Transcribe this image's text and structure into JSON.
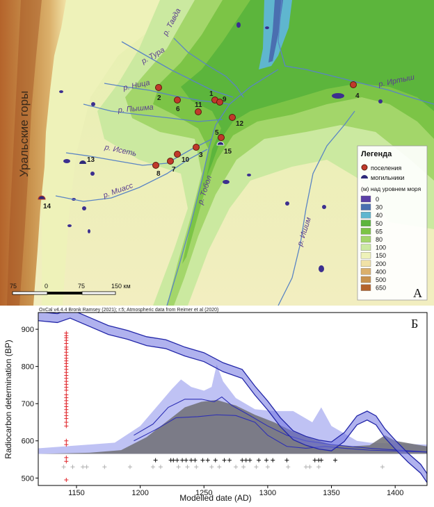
{
  "map": {
    "panel_letter": "А",
    "mountains_label": "Уральские горы",
    "rivers": [
      {
        "id": "tavda",
        "label": "р. Тавда"
      },
      {
        "id": "tura",
        "label": "р. Тура"
      },
      {
        "id": "nitsa",
        "label": "р. Ница"
      },
      {
        "id": "pyshma",
        "label": "р. Пышма"
      },
      {
        "id": "iset",
        "label": "р. Исеть"
      },
      {
        "id": "miass",
        "label": "р. Миасс"
      },
      {
        "id": "tobol",
        "label": "р. Тобол"
      },
      {
        "id": "ishim",
        "label": "р. Ишим"
      },
      {
        "id": "irtysh",
        "label": "р. Иртыш"
      }
    ],
    "settlements": [
      "1",
      "2",
      "3",
      "4",
      "5",
      "6",
      "7",
      "8",
      "9",
      "10",
      "11",
      "12"
    ],
    "burials": [
      "13",
      "14",
      "15"
    ],
    "legend": {
      "title": "Легенда",
      "settlements_label": "поселения",
      "burials_label": "могильники",
      "elevation_title": "(м) над уровнем моря",
      "elevation_levels": [
        {
          "label": "0",
          "color": "#5b3fa6"
        },
        {
          "label": "30",
          "color": "#4a6fb0"
        },
        {
          "label": "40",
          "color": "#5fb6cf"
        },
        {
          "label": "50",
          "color": "#5cb53c"
        },
        {
          "label": "65",
          "color": "#7cc446"
        },
        {
          "label": "80",
          "color": "#a3d66a"
        },
        {
          "label": "100",
          "color": "#cbe9a0"
        },
        {
          "label": "150",
          "color": "#eef2b9"
        },
        {
          "label": "200",
          "color": "#f1e2a6"
        },
        {
          "label": "400",
          "color": "#dbb06b"
        },
        {
          "label": "500",
          "color": "#c8914c"
        },
        {
          "label": "650",
          "color": "#b4632b"
        }
      ]
    },
    "scalebar": {
      "labels": [
        "75",
        "0",
        "75",
        "150 км"
      ]
    }
  },
  "chart": {
    "panel_letter": "Б",
    "header": "OxCal v4.4.4 Bronk Ramsey (2021); r:5; Atmospheric data from Reimer et al (2020)"
  },
  "chart_data": {
    "type": "line",
    "xlabel": "Modelled date (AD)",
    "ylabel": "Radiocarbon determination (BP)",
    "xlim": [
      1120,
      1425
    ],
    "ylim": [
      480,
      945
    ],
    "x_ticks": [
      1150,
      1200,
      1250,
      1300,
      1350,
      1400
    ],
    "y_ticks": [
      500,
      600,
      700,
      800,
      900
    ],
    "calibration_curve": {
      "x": [
        1120,
        1135,
        1145,
        1160,
        1175,
        1190,
        1205,
        1220,
        1235,
        1250,
        1265,
        1280,
        1290,
        1300,
        1310,
        1320,
        1330,
        1340,
        1350,
        1360,
        1370,
        1378,
        1385,
        1392,
        1400,
        1410,
        1420,
        1425
      ],
      "y": [
        935,
        930,
        942,
        920,
        898,
        885,
        868,
        860,
        840,
        825,
        798,
        780,
        735,
        695,
        650,
        615,
        600,
        590,
        585,
        610,
        655,
        668,
        655,
        620,
        590,
        555,
        525,
        500
      ],
      "band": 12
    },
    "blue_lines": [
      {
        "x": [
          1195,
          1210,
          1222,
          1235,
          1248,
          1258,
          1264,
          1272,
          1285,
          1300,
          1315,
          1330,
          1350,
          1380,
          1425
        ],
        "y": [
          615,
          645,
          690,
          712,
          712,
          705,
          718,
          695,
          670,
          640,
          615,
          600,
          590,
          580,
          570
        ]
      },
      {
        "x": [
          1195,
          1212,
          1228,
          1245,
          1260,
          1275,
          1290,
          1300,
          1315,
          1330,
          1345,
          1360,
          1380,
          1425
        ],
        "y": [
          600,
          630,
          662,
          665,
          670,
          668,
          650,
          615,
          585,
          580,
          585,
          580,
          575,
          570
        ]
      }
    ],
    "light_blue_area": {
      "x": [
        1120,
        1180,
        1200,
        1215,
        1225,
        1232,
        1240,
        1250,
        1256,
        1260,
        1265,
        1275,
        1290,
        1305,
        1320,
        1335,
        1342,
        1350,
        1370,
        1380,
        1425
      ],
      "y": [
        580,
        595,
        640,
        700,
        740,
        765,
        745,
        735,
        745,
        805,
        760,
        715,
        685,
        680,
        680,
        650,
        690,
        640,
        600,
        595,
        590
      ]
    },
    "gray_area": {
      "x": [
        1120,
        1160,
        1185,
        1205,
        1220,
        1235,
        1248,
        1260,
        1275,
        1290,
        1305,
        1320,
        1335,
        1350,
        1365,
        1380,
        1392,
        1400,
        1425
      ],
      "y": [
        565,
        568,
        575,
        610,
        650,
        690,
        705,
        710,
        695,
        670,
        650,
        625,
        605,
        590,
        585,
        588,
        615,
        600,
        585
      ]
    },
    "baseline": 565,
    "red_markers": {
      "x": 1142,
      "y": [
        890,
        883,
        877,
        870,
        862,
        852,
        846,
        838,
        830,
        822,
        815,
        808,
        800,
        792,
        784,
        776,
        768,
        760,
        752,
        744,
        736,
        724,
        716,
        708,
        700,
        692,
        684,
        676,
        668,
        660,
        650,
        640,
        600,
        590,
        555,
        545,
        495
      ]
    },
    "black_markers": {
      "y": 548,
      "x": [
        1212,
        1224,
        1226,
        1229,
        1233,
        1236,
        1240,
        1243,
        1249,
        1253,
        1259,
        1266,
        1270,
        1280,
        1283,
        1286,
        1293,
        1299,
        1304,
        1315,
        1337,
        1340,
        1342,
        1353
      ]
    },
    "gray_markers": {
      "y": 530,
      "x": [
        1140,
        1147,
        1155,
        1158,
        1172,
        1192,
        1210,
        1216,
        1230,
        1237,
        1244,
        1256,
        1262,
        1275,
        1281,
        1291,
        1300,
        1316,
        1330,
        1333,
        1340,
        1390
      ]
    }
  }
}
